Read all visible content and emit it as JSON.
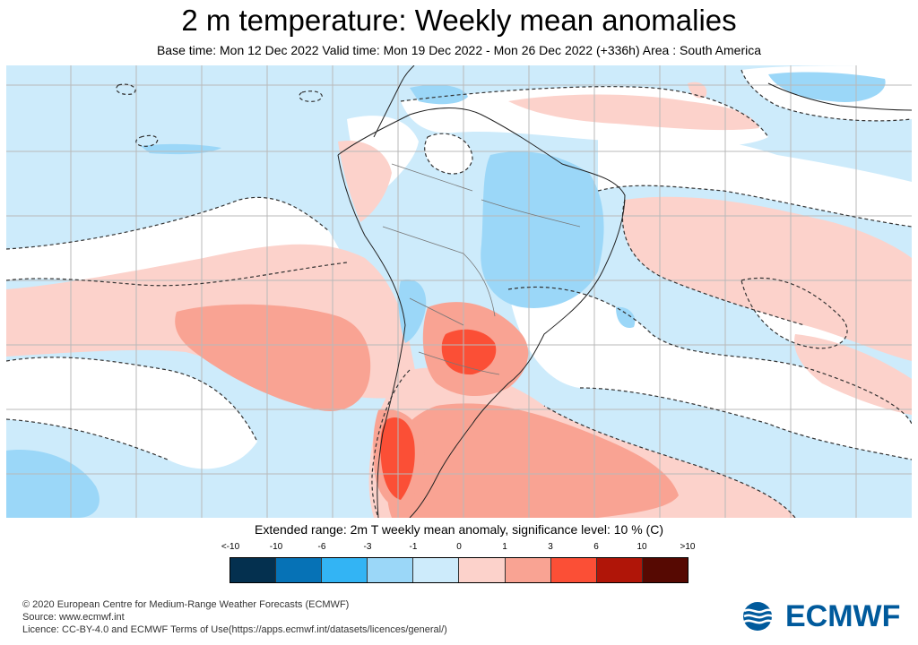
{
  "header": {
    "title": "2 m temperature: Weekly mean anomalies",
    "subtitle": "Base time: Mon 12 Dec 2022 Valid time: Mon 19 Dec 2022 - Mon 26 Dec 2022 (+336h) Area : South America"
  },
  "map": {
    "area": "South America",
    "significance_contour": "dashed",
    "grid": true
  },
  "legend": {
    "title": "Extended range: 2m T weekly mean anomaly, significance level: 10 % (C)",
    "ticks": [
      "<-10",
      "-10",
      "-6",
      "-3",
      "-1",
      "0",
      "1",
      "3",
      "6",
      "10",
      ">10"
    ],
    "colors": [
      "#04304f",
      "#0672b6",
      "#33b4f4",
      "#9bd7f8",
      "#cdebfb",
      "#fcd2cb",
      "#f9a393",
      "#fb4f36",
      "#b01508",
      "#560902"
    ]
  },
  "footer": {
    "copyright": "© 2020 European Centre for Medium-Range Weather Forecasts (ECMWF)",
    "source": "Source: www.ecmwf.int",
    "licence": "Licence: CC-BY-4.0 and ECMWF Terms of Use(https://apps.ecmwf.int/datasets/licences/general/)"
  },
  "logo": {
    "text": "ECMWF",
    "color": "#005a9c"
  }
}
